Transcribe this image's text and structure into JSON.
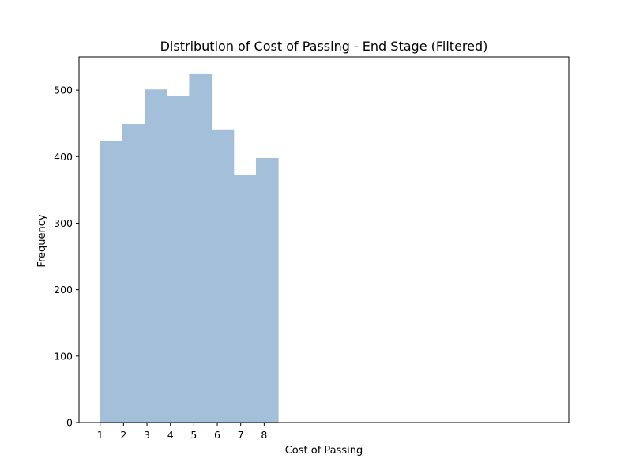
{
  "chart_data": {
    "type": "bar",
    "title": "Distribution of Cost of Passing - End Stage (Filtered)",
    "xlabel": "Cost of Passing",
    "ylabel": "Frequency",
    "bins": [
      {
        "start": 1,
        "end": 1.95,
        "count": 423
      },
      {
        "start": 1.95,
        "end": 2.9,
        "count": 449
      },
      {
        "start": 2.9,
        "end": 3.85,
        "count": 501
      },
      {
        "start": 3.85,
        "end": 4.8,
        "count": 491
      },
      {
        "start": 4.8,
        "end": 5.75,
        "count": 524
      },
      {
        "start": 5.75,
        "end": 6.7,
        "count": 441
      },
      {
        "start": 6.7,
        "end": 7.65,
        "count": 373
      },
      {
        "start": 7.65,
        "end": 8.6,
        "count": 398
      }
    ],
    "xticks": [
      "1",
      "2",
      "3",
      "4",
      "5",
      "6",
      "7",
      "8"
    ],
    "yticks": [
      "0",
      "100",
      "200",
      "300",
      "400",
      "500"
    ],
    "xlim": [
      0.1,
      21.0
    ],
    "ylim": [
      0,
      550
    ],
    "bar_color": "#a3bfd9",
    "grid": false,
    "legend": false
  }
}
